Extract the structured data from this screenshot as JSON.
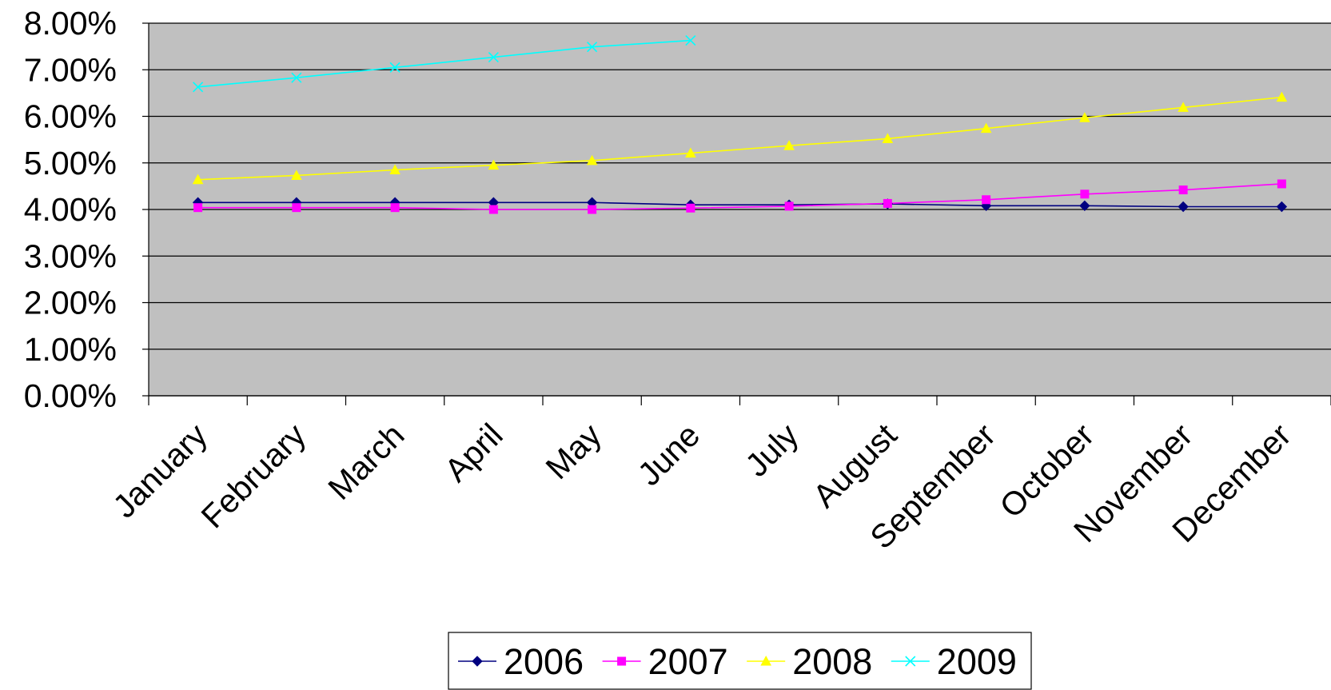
{
  "chart_data": {
    "type": "line",
    "categories": [
      "January",
      "February",
      "March",
      "April",
      "May",
      "June",
      "July",
      "August",
      "September",
      "October",
      "November",
      "December"
    ],
    "series": [
      {
        "name": "2006",
        "color": "#000080",
        "marker": "diamond",
        "values": [
          4.15,
          4.15,
          4.15,
          4.15,
          4.15,
          4.1,
          4.1,
          4.12,
          4.08,
          4.08,
          4.06,
          4.06
        ]
      },
      {
        "name": "2007",
        "color": "#ff00ff",
        "marker": "square",
        "values": [
          4.04,
          4.04,
          4.04,
          4.0,
          4.0,
          4.03,
          4.07,
          4.13,
          4.21,
          4.33,
          4.42,
          4.55
        ]
      },
      {
        "name": "2008",
        "color": "#ffff00",
        "marker": "triangle",
        "values": [
          4.64,
          4.73,
          4.85,
          4.95,
          5.05,
          5.21,
          5.37,
          5.52,
          5.74,
          5.97,
          6.19,
          6.41
        ]
      },
      {
        "name": "2009",
        "color": "#00ffff",
        "marker": "x",
        "values": [
          6.63,
          6.83,
          7.05,
          7.27,
          7.49,
          7.63,
          null,
          null,
          null,
          null,
          null,
          null
        ]
      }
    ],
    "ylim": [
      0,
      8
    ],
    "yticks": [
      {
        "value": 0,
        "label": "0.00%"
      },
      {
        "value": 1,
        "label": "1.00%"
      },
      {
        "value": 2,
        "label": "2.00%"
      },
      {
        "value": 3,
        "label": "3.00%"
      },
      {
        "value": 4,
        "label": "4.00%"
      },
      {
        "value": 5,
        "label": "5.00%"
      },
      {
        "value": 6,
        "label": "6.00%"
      },
      {
        "value": 7,
        "label": "7.00%"
      },
      {
        "value": 8,
        "label": "8.00%"
      }
    ],
    "grid": true,
    "background": "#c0c0c0",
    "legend": "bottom"
  }
}
